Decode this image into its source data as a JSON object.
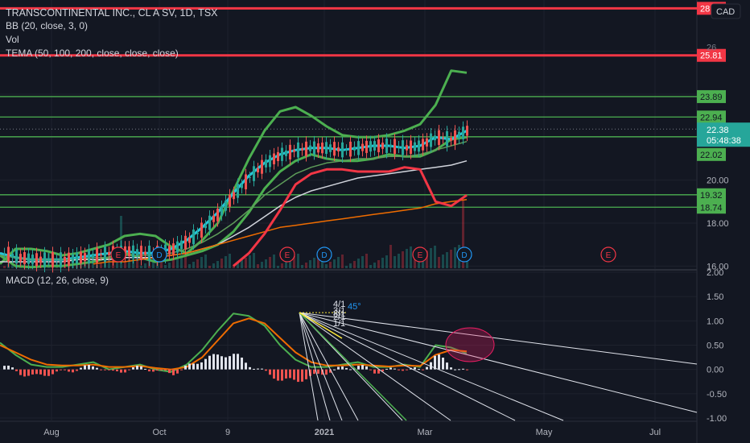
{
  "header": {
    "title": "TRANSCONTINENTAL INC., CL A SV, 1D, TSX",
    "currency": "CAD"
  },
  "indicators": {
    "bb": "BB (20, close, 3, 0)",
    "vol": "Vol",
    "tema": "TEMA (50, 100, 200, close, close, close)",
    "macd": "MACD (12, 26, close, 9)"
  },
  "price_axis": {
    "ticks": [
      "16.00",
      "18.00",
      "20.00"
    ],
    "partial_ticks": [
      "2",
      "26"
    ]
  },
  "macd_axis": {
    "ticks": [
      "2.00",
      "1.50",
      "1.00",
      "0.50",
      "0.00",
      "-0.50",
      "-1.00"
    ]
  },
  "time_axis": {
    "labels": [
      "Aug",
      "Oct",
      "9",
      "2021",
      "Mar",
      "May",
      "Jul"
    ]
  },
  "levels": [
    {
      "label": "28",
      "color": "#f23645"
    },
    {
      "label": "25.81",
      "color": "#f23645"
    },
    {
      "label": "23.89",
      "color": "#4caf50"
    },
    {
      "label": "22.94",
      "color": "#4caf50"
    },
    {
      "label": "22.02",
      "color": "#4caf50"
    },
    {
      "label": "19.32",
      "color": "#4caf50"
    },
    {
      "label": "18.74",
      "color": "#4caf50"
    }
  ],
  "last_price": {
    "value": "22.38",
    "countdown": "05:48:38",
    "color": "#26a69a"
  },
  "events": [
    "E",
    "D",
    "E",
    "D",
    "E",
    "D",
    "E"
  ],
  "fan_labels": [
    "1/1",
    "2/1",
    "3/1",
    "4/1",
    "8/1",
    "45°"
  ],
  "chart_data": {
    "type": "line",
    "price_range": [
      15.9,
      28.2
    ],
    "macd_range": [
      -1.05,
      2.05
    ],
    "series": [
      {
        "name": "BB upper",
        "color": "#4caf50",
        "values": [
          16.1,
          16.8,
          16.8,
          16.7,
          16.5,
          16.6,
          16.8,
          17.0,
          17.4,
          17.5,
          17.4,
          16.9,
          16.6,
          17.2,
          18.0,
          19.5,
          21.0,
          22.3,
          23.2,
          23.4,
          23.0,
          22.5,
          22.1,
          22.0,
          22.0,
          22.1,
          22.3,
          22.6,
          23.5,
          25.1,
          25.0
        ]
      },
      {
        "name": "BB lower",
        "color": "#4caf50",
        "values": [
          16.5,
          16.0,
          15.95,
          16.0,
          16.0,
          16.1,
          16.2,
          16.4,
          16.6,
          16.4,
          16.2,
          16.3,
          16.5,
          16.7,
          17.0,
          17.6,
          18.5,
          19.6,
          20.4,
          20.9,
          21.2,
          21.0,
          20.9,
          20.9,
          21.0,
          21.2,
          21.1,
          21.1,
          21.4,
          21.9,
          22.0
        ]
      },
      {
        "name": "TEMA 50",
        "color": "#26c6da",
        "values": [
          16.6,
          16.4,
          16.3,
          16.3,
          16.3,
          16.4,
          16.5,
          16.6,
          16.7,
          16.6,
          16.6,
          16.8,
          17.2,
          17.8,
          18.5,
          19.4,
          20.2,
          20.8,
          21.2,
          21.4,
          21.5,
          21.5,
          21.4,
          21.5,
          21.6,
          21.6,
          21.5,
          21.6,
          22.0,
          21.9,
          22.3
        ]
      },
      {
        "name": "TEMA 100",
        "color": "#5d9c59",
        "values": [
          16.5,
          16.4,
          16.3,
          16.3,
          16.3,
          16.3,
          16.4,
          16.4,
          16.5,
          16.5,
          16.5,
          16.6,
          16.8,
          17.1,
          17.5,
          18.0,
          18.6,
          19.3,
          19.8,
          20.3,
          20.6,
          20.8,
          20.9,
          21.0,
          21.0,
          21.1,
          21.1,
          21.2,
          21.4,
          21.6,
          21.8
        ]
      },
      {
        "name": "TEMA 200",
        "color": "#d1d4dc",
        "values": [
          16.2,
          16.2,
          16.2,
          16.2,
          16.2,
          16.3,
          16.3,
          16.3,
          16.4,
          16.4,
          16.4,
          16.5,
          16.6,
          16.8,
          17.0,
          17.4,
          17.8,
          18.3,
          18.8,
          19.2,
          19.5,
          19.7,
          19.9,
          20.1,
          20.2,
          20.3,
          20.4,
          20.5,
          20.6,
          20.7,
          20.9
        ]
      },
      {
        "name": "Orange line",
        "color": "#ef6c00",
        "values": [
          null,
          null,
          null,
          null,
          null,
          null,
          16.1,
          16.2,
          16.2,
          16.3,
          16.4,
          16.5,
          16.6,
          16.8,
          17.0,
          17.2,
          17.4,
          17.6,
          17.8,
          17.9,
          18.0,
          18.1,
          18.2,
          18.3,
          18.4,
          18.5,
          18.6,
          18.7,
          18.9,
          19.0,
          19.1
        ]
      },
      {
        "name": "Red line",
        "color": "#f23645",
        "values": [
          null,
          null,
          null,
          null,
          null,
          null,
          null,
          null,
          null,
          null,
          null,
          null,
          null,
          null,
          null,
          16.0,
          16.6,
          17.5,
          18.6,
          19.8,
          20.3,
          20.5,
          20.5,
          20.4,
          20.4,
          20.4,
          20.6,
          20.5,
          19.0,
          18.8,
          19.3
        ]
      },
      {
        "name": "MACD",
        "color": "#4caf50",
        "values": [
          0.55,
          0.3,
          0.1,
          0.05,
          0.05,
          0.1,
          0.15,
          0.0,
          0.05,
          0.1,
          0.0,
          -0.05,
          0.1,
          0.4,
          0.8,
          1.15,
          1.1,
          0.9,
          0.5,
          0.2,
          0.05,
          0.05,
          0.1,
          0.15,
          0.05,
          0.05,
          0.1,
          0.05,
          0.5,
          0.45,
          0.33
        ]
      },
      {
        "name": "Signal",
        "color": "#ef6c00",
        "values": [
          0.5,
          0.35,
          0.2,
          0.1,
          0.08,
          0.08,
          0.1,
          0.05,
          0.05,
          0.07,
          0.03,
          0.0,
          0.05,
          0.25,
          0.6,
          0.95,
          1.05,
          0.95,
          0.65,
          0.35,
          0.15,
          0.08,
          0.08,
          0.1,
          0.08,
          0.06,
          0.08,
          0.07,
          0.3,
          0.4,
          0.37
        ]
      }
    ]
  }
}
